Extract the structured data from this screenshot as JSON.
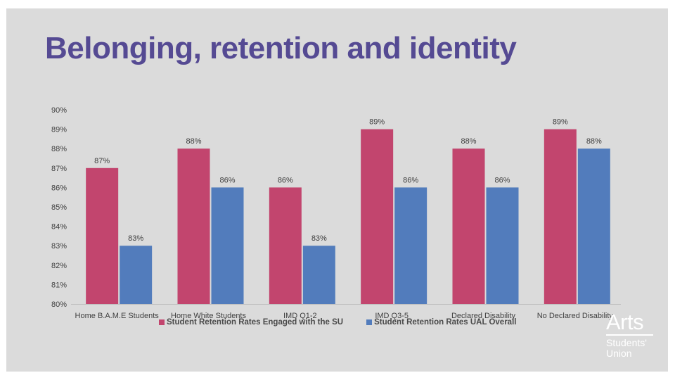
{
  "slide": {
    "title": "Belonging, retention and identity"
  },
  "colors": {
    "background": "#dbdbdb",
    "title": "#554a93",
    "series_engaged": "#c2456e",
    "series_overall": "#527cbc",
    "logo": "#ffffff"
  },
  "chart_data": {
    "type": "bar",
    "title": "",
    "xlabel": "",
    "ylabel": "",
    "categories": [
      "Home B.A.M.E Students",
      "Home White Students",
      "IMD Q1-2",
      "IMD Q3-5",
      "Declared Disability",
      "No Declared Disability"
    ],
    "series": [
      {
        "name": "Student Retention Rates Engaged with the SU",
        "values": [
          87,
          88,
          86,
          89,
          88,
          89
        ],
        "labels": [
          "87%",
          "88%",
          "86%",
          "89%",
          "88%",
          "89%"
        ],
        "color": "#c2456e"
      },
      {
        "name": "Student Retention Rates UAL Overall",
        "values": [
          83,
          86,
          83,
          86,
          86,
          88
        ],
        "labels": [
          "83%",
          "86%",
          "83%",
          "86%",
          "86%",
          "88%"
        ],
        "color": "#527cbc"
      }
    ],
    "ylim": [
      80,
      90
    ],
    "yticks": [
      "80%",
      "81%",
      "82%",
      "83%",
      "84%",
      "85%",
      "86%",
      "87%",
      "88%",
      "89%",
      "90%"
    ],
    "grid": false,
    "legend_position": "bottom"
  },
  "logo": {
    "name": "Arts",
    "subtitle_line1": "Students'",
    "subtitle_line2": "Union"
  }
}
